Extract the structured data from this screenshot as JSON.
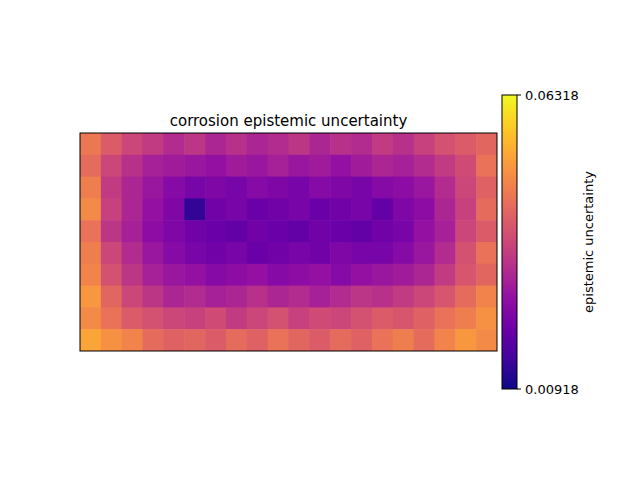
{
  "chart_data": {
    "type": "heatmap",
    "title": "corrosion epistemic uncertainty",
    "colorbar_label": "epistemic uncertainty",
    "color": "plasma",
    "tick_labels": false,
    "colorbar_range": [
      0.00918,
      0.06318
    ],
    "colorbar_ticks": [
      0.00918,
      0.06318
    ],
    "cells": [
      [
        0.045,
        0.04,
        0.036,
        0.034,
        0.031,
        0.033,
        0.03,
        0.032,
        0.03,
        0.031,
        0.033,
        0.03,
        0.032,
        0.031,
        0.034,
        0.032,
        0.035,
        0.038,
        0.04,
        0.042
      ],
      [
        0.043,
        0.036,
        0.032,
        0.029,
        0.028,
        0.027,
        0.026,
        0.028,
        0.027,
        0.029,
        0.027,
        0.028,
        0.026,
        0.028,
        0.03,
        0.029,
        0.031,
        0.034,
        0.037,
        0.044
      ],
      [
        0.046,
        0.034,
        0.03,
        0.027,
        0.024,
        0.022,
        0.023,
        0.022,
        0.024,
        0.023,
        0.022,
        0.024,
        0.023,
        0.022,
        0.024,
        0.025,
        0.027,
        0.031,
        0.036,
        0.041
      ],
      [
        0.048,
        0.035,
        0.03,
        0.026,
        0.023,
        0.013,
        0.021,
        0.022,
        0.02,
        0.021,
        0.022,
        0.02,
        0.021,
        0.022,
        0.019,
        0.023,
        0.025,
        0.03,
        0.035,
        0.043
      ],
      [
        0.044,
        0.033,
        0.029,
        0.025,
        0.023,
        0.021,
        0.02,
        0.019,
        0.021,
        0.02,
        0.019,
        0.021,
        0.02,
        0.019,
        0.021,
        0.022,
        0.026,
        0.029,
        0.036,
        0.04
      ],
      [
        0.046,
        0.036,
        0.031,
        0.027,
        0.024,
        0.022,
        0.021,
        0.022,
        0.02,
        0.021,
        0.022,
        0.021,
        0.023,
        0.022,
        0.022,
        0.024,
        0.027,
        0.031,
        0.038,
        0.044
      ],
      [
        0.047,
        0.038,
        0.033,
        0.029,
        0.027,
        0.026,
        0.024,
        0.025,
        0.026,
        0.024,
        0.025,
        0.026,
        0.024,
        0.026,
        0.027,
        0.028,
        0.03,
        0.034,
        0.039,
        0.042
      ],
      [
        0.05,
        0.042,
        0.036,
        0.033,
        0.03,
        0.031,
        0.029,
        0.03,
        0.032,
        0.03,
        0.031,
        0.029,
        0.031,
        0.033,
        0.032,
        0.034,
        0.036,
        0.039,
        0.043,
        0.047
      ],
      [
        0.048,
        0.044,
        0.04,
        0.038,
        0.036,
        0.035,
        0.037,
        0.034,
        0.036,
        0.038,
        0.035,
        0.037,
        0.036,
        0.038,
        0.04,
        0.039,
        0.041,
        0.044,
        0.046,
        0.049
      ],
      [
        0.052,
        0.049,
        0.047,
        0.043,
        0.041,
        0.042,
        0.04,
        0.043,
        0.041,
        0.044,
        0.042,
        0.04,
        0.043,
        0.041,
        0.044,
        0.046,
        0.043,
        0.047,
        0.05,
        0.048
      ]
    ]
  }
}
